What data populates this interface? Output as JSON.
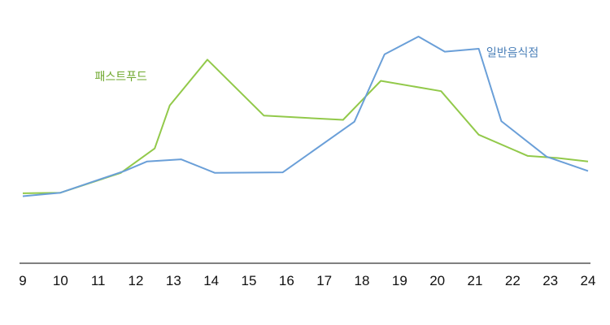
{
  "chart_data": {
    "type": "line",
    "title": "",
    "xlabel": "",
    "ylabel": "",
    "x_ticks": [
      "9",
      "10",
      "11",
      "12",
      "13",
      "14",
      "15",
      "16",
      "17",
      "18",
      "19",
      "20",
      "21",
      "22",
      "23",
      "24"
    ],
    "xlim": [
      9,
      24
    ],
    "ylim": [
      0,
      100
    ],
    "grid": false,
    "y_axis_visible": false,
    "series": [
      {
        "name": "패스트푸드",
        "color": "#92c94a",
        "points": [
          {
            "x": 9.0,
            "y": 17.9
          },
          {
            "x": 10.0,
            "y": 18.2
          },
          {
            "x": 11.6,
            "y": 28.6
          },
          {
            "x": 12.5,
            "y": 41.4
          },
          {
            "x": 12.9,
            "y": 63.9
          },
          {
            "x": 13.9,
            "y": 87.9
          },
          {
            "x": 15.4,
            "y": 58.6
          },
          {
            "x": 17.5,
            "y": 56.4
          },
          {
            "x": 18.5,
            "y": 76.8
          },
          {
            "x": 20.1,
            "y": 71.4
          },
          {
            "x": 21.1,
            "y": 48.6
          },
          {
            "x": 22.4,
            "y": 37.5
          },
          {
            "x": 23.2,
            "y": 36.4
          },
          {
            "x": 24.0,
            "y": 34.6
          }
        ]
      },
      {
        "name": "일반음식점",
        "color": "#6a9fd8",
        "points": [
          {
            "x": 9.0,
            "y": 16.4
          },
          {
            "x": 10.0,
            "y": 18.2
          },
          {
            "x": 11.7,
            "y": 29.6
          },
          {
            "x": 12.3,
            "y": 34.6
          },
          {
            "x": 13.2,
            "y": 35.7
          },
          {
            "x": 14.1,
            "y": 28.6
          },
          {
            "x": 15.9,
            "y": 28.9
          },
          {
            "x": 17.8,
            "y": 55.4
          },
          {
            "x": 18.6,
            "y": 90.7
          },
          {
            "x": 19.5,
            "y": 100.0
          },
          {
            "x": 20.2,
            "y": 92.1
          },
          {
            "x": 21.1,
            "y": 93.6
          },
          {
            "x": 21.7,
            "y": 55.7
          },
          {
            "x": 22.9,
            "y": 37.1
          },
          {
            "x": 24.0,
            "y": 29.6
          }
        ]
      }
    ],
    "annotations": [
      {
        "text": "패스트푸드",
        "series": 0,
        "x": 12.3,
        "y": 77.0,
        "anchor": "end"
      },
      {
        "text": "일반음식점",
        "series": 1,
        "x": 21.3,
        "y": 89.5,
        "anchor": "start"
      }
    ]
  }
}
